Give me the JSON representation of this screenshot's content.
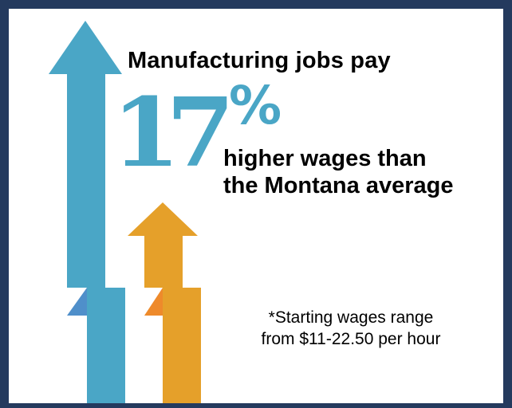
{
  "headline": "Manufacturing jobs pay",
  "stat": {
    "number": "17",
    "unit": "%"
  },
  "subline": {
    "line1": "higher wages than",
    "line2": "the Montana average"
  },
  "note": {
    "line1": "*Starting wages range",
    "line2": "from $11-22.50 per hour"
  },
  "colors": {
    "border": "#243a5e",
    "blue_arrow": "#4aa6c6",
    "blue_arrow_fold": "#4f8fca",
    "orange_arrow": "#e5a02a",
    "orange_arrow_fold": "#ee8a2b",
    "accent_text": "#4aa6c6"
  },
  "icons": [
    "blue-up-arrow-icon",
    "orange-up-arrow-icon"
  ]
}
